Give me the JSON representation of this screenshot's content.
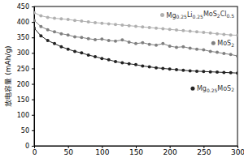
{
  "chart_data": {
    "type": "line",
    "y_label": "放电容量 (mAh/g)",
    "x": [
      0,
      10,
      20,
      30,
      40,
      50,
      60,
      70,
      80,
      90,
      100,
      110,
      120,
      130,
      140,
      150,
      160,
      170,
      180,
      190,
      200,
      210,
      220,
      230,
      240,
      250,
      260,
      270,
      280,
      290,
      300
    ],
    "series": [
      {
        "name": "Mg0.25Li0.25MoS2Cl0.5",
        "color": "#b0b0b0",
        "marker": "circle",
        "values": [
          430,
          420,
          415,
          412,
          410,
          408,
          405,
          403,
          400,
          398,
          396,
          394,
          392,
          390,
          388,
          386,
          384,
          382,
          380,
          378,
          376,
          374,
          372,
          370,
          368,
          366,
          364,
          362,
          360,
          358,
          357
        ]
      },
      {
        "name": "MoS2",
        "color": "#808080",
        "marker": "circle",
        "values": [
          405,
          385,
          375,
          368,
          362,
          358,
          352,
          350,
          346,
          343,
          345,
          340,
          338,
          342,
          335,
          330,
          333,
          328,
          325,
          330,
          322,
          318,
          320,
          315,
          312,
          310,
          305,
          302,
          298,
          295,
          290
        ]
      },
      {
        "name": "Mg0.25MoS2",
        "color": "#222222",
        "marker": "circle",
        "values": [
          380,
          355,
          340,
          330,
          320,
          312,
          305,
          300,
          293,
          288,
          282,
          278,
          272,
          268,
          265,
          262,
          258,
          255,
          252,
          250,
          248,
          246,
          244,
          242,
          241,
          240,
          239,
          238,
          237,
          236,
          235
        ]
      }
    ],
    "xlim": [
      0,
      300
    ],
    "xticks": [
      0,
      50,
      100,
      150,
      200,
      250,
      300
    ],
    "ylim": [
      0,
      450
    ],
    "yticks": [
      0,
      50,
      100,
      150,
      200,
      250,
      300,
      350,
      400,
      450
    ],
    "grid": false
  }
}
